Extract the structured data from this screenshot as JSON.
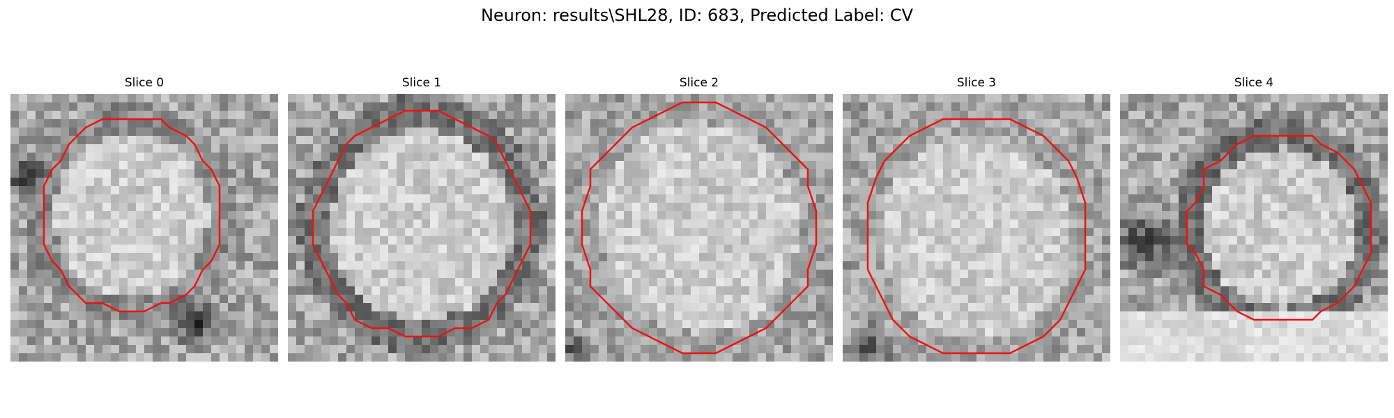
{
  "figure": {
    "title": "Neuron: results\\SHL28, ID: 683, Predicted Label: CV",
    "contour_color": "#ee1111",
    "colormap": "grayscale",
    "panels": [
      {
        "title": "Slice 0"
      },
      {
        "title": "Slice 1"
      },
      {
        "title": "Slice 2"
      },
      {
        "title": "Slice 3"
      },
      {
        "title": "Slice 4"
      }
    ]
  }
}
